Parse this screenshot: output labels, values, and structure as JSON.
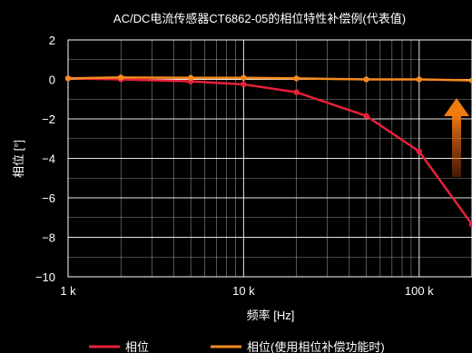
{
  "chart_data": {
    "type": "line",
    "title": "AC/DC电流传感器CT6862-05的相位特性补偿例(代表值)",
    "xlabel": "频率 [Hz]",
    "ylabel": "相位 [°]",
    "x_scale": "log",
    "xlim": [
      1000,
      200000
    ],
    "ylim": [
      -10,
      2
    ],
    "x_ticks": [
      {
        "value": 1000,
        "label": "1 k"
      },
      {
        "value": 10000,
        "label": "10 k"
      },
      {
        "value": 100000,
        "label": "100 k"
      }
    ],
    "y_ticks": [
      {
        "value": 2,
        "label": "2"
      },
      {
        "value": 0,
        "label": "0"
      },
      {
        "value": -2,
        "label": "−2"
      },
      {
        "value": -4,
        "label": "−4"
      },
      {
        "value": -6,
        "label": "−6"
      },
      {
        "value": -8,
        "label": "−8"
      },
      {
        "value": -10,
        "label": "−10"
      }
    ],
    "grid": true,
    "legend_position": "bottom",
    "series": [
      {
        "name": "相位",
        "color": "#e8203a",
        "x": [
          1000,
          2000,
          5000,
          10000,
          20000,
          50000,
          100000,
          200000
        ],
        "y": [
          0.05,
          0.0,
          -0.1,
          -0.25,
          -0.65,
          -1.85,
          -3.65,
          -7.35
        ]
      },
      {
        "name": "相位(使用相位补偿功能时)",
        "color": "#f58a1f",
        "x": [
          1000,
          2000,
          5000,
          10000,
          20000,
          50000,
          100000,
          200000
        ],
        "y": [
          0.05,
          0.1,
          0.08,
          0.08,
          0.05,
          0.0,
          0.0,
          -0.05
        ]
      }
    ],
    "annotation": {
      "type": "arrow",
      "direction": "up",
      "color": "#f07c10"
    }
  }
}
